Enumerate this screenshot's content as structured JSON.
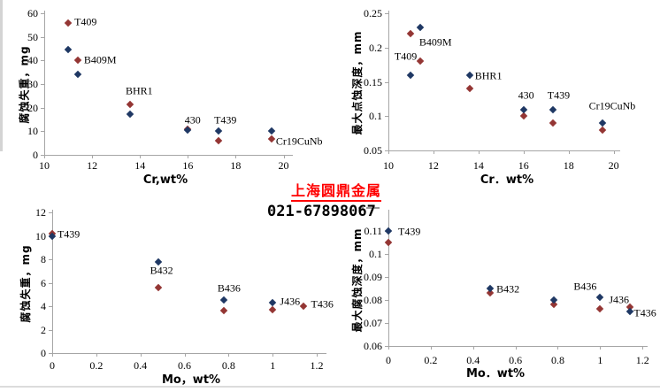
{
  "watermark": {
    "company": "上海圆鼎金属",
    "phone": "021-67898067",
    "company_color": "#ff0000",
    "phone_color": "#000000"
  },
  "series_colors": {
    "red": "#943634",
    "blue": "#1F3864"
  },
  "chart_data": [
    {
      "id": "cr-weight-loss",
      "type": "scatter",
      "xlabel": "Cr,wt%",
      "ylabel": "腐蚀失重，mg",
      "xlim": [
        10,
        20.35
      ],
      "ylim": [
        0,
        60
      ],
      "xtick_values": [
        10,
        12,
        14,
        16,
        18,
        20
      ],
      "xtick_labels": [
        "10",
        "12",
        "14",
        "16",
        "18",
        "20"
      ],
      "ytick_values": [
        0,
        10,
        20,
        30,
        40,
        50,
        60
      ],
      "ytick_labels": [
        "0",
        "10",
        "20",
        "30",
        "40",
        "50",
        "60"
      ],
      "series": [
        {
          "name": "red",
          "points": [
            [
              11,
              56
            ],
            [
              11.4,
              40.3
            ],
            [
              13.6,
              21.4
            ],
            [
              16,
              10.9
            ],
            [
              17.3,
              6
            ],
            [
              19.5,
              6.6
            ]
          ]
        },
        {
          "name": "blue",
          "points": [
            [
              11,
              44.8
            ],
            [
              11.4,
              34.2
            ],
            [
              13.6,
              17.2
            ],
            [
              16,
              10.5
            ],
            [
              17.3,
              10.2
            ],
            [
              19.5,
              10
            ]
          ]
        }
      ],
      "annotations": [
        {
          "text": "T409",
          "x": 11.26,
          "y": 56.4
        },
        {
          "text": "B409M",
          "x": 11.66,
          "y": 40.1
        },
        {
          "text": "BHR1",
          "x": 13.4,
          "y": 27.0
        },
        {
          "text": "430",
          "x": 15.87,
          "y": 14.6
        },
        {
          "text": "T439",
          "x": 17.1,
          "y": 14.8
        },
        {
          "text": "Cr19CuNb",
          "x": 19.68,
          "y": 5.8
        }
      ]
    },
    {
      "id": "cr-pit-depth",
      "type": "scatter",
      "xlabel": "Cr．wt%",
      "ylabel": "最大点蚀深度，mm",
      "xlim": [
        10,
        20.25
      ],
      "ylim": [
        0.05,
        0.25
      ],
      "xtick_values": [
        10,
        12,
        14,
        16,
        18,
        20
      ],
      "xtick_labels": [
        "10",
        "12",
        "14",
        "16",
        "18",
        "20"
      ],
      "ytick_values": [
        0.05,
        0.1,
        0.15,
        0.2,
        0.25
      ],
      "ytick_labels": [
        "0.05",
        "0.1",
        "0.15",
        "0.2",
        "0.25"
      ],
      "series": [
        {
          "name": "red",
          "points": [
            [
              11,
              0.22
            ],
            [
              11.4,
              0.18
            ],
            [
              13.6,
              0.14
            ],
            [
              16,
              0.1
            ],
            [
              17.3,
              0.09
            ],
            [
              19.5,
              0.08
            ]
          ]
        },
        {
          "name": "blue",
          "points": [
            [
              11,
              0.16
            ],
            [
              11.4,
              0.23
            ],
            [
              13.6,
              0.16
            ],
            [
              16,
              0.11
            ],
            [
              17.3,
              0.11
            ],
            [
              19.5,
              0.09
            ]
          ]
        }
      ],
      "annotations": [
        {
          "text": "T409",
          "x": 10.27,
          "y": 0.187
        },
        {
          "text": "B409M",
          "x": 11.37,
          "y": 0.207
        },
        {
          "text": "BHR1",
          "x": 13.84,
          "y": 0.159
        },
        {
          "text": "430",
          "x": 15.76,
          "y": 0.13
        },
        {
          "text": "T439",
          "x": 17.06,
          "y": 0.13
        },
        {
          "text": "Cr19CuNb",
          "x": 18.9,
          "y": 0.115
        }
      ]
    },
    {
      "id": "mo-weight-loss",
      "type": "scatter",
      "xlabel": "Mo，wt%",
      "ylabel": "腐蚀失重，mg",
      "xlim": [
        0,
        1.24
      ],
      "ylim": [
        0,
        12
      ],
      "xtick_values": [
        0,
        0.2,
        0.4,
        0.6,
        0.8,
        1,
        1.2
      ],
      "xtick_labels": [
        "0",
        "0.2",
        "0.4",
        "0.6",
        "0.8",
        "1",
        "1.2"
      ],
      "ytick_values": [
        0,
        2,
        4,
        6,
        8,
        10,
        12
      ],
      "ytick_labels": [
        "0",
        "2",
        "4",
        "6",
        "8",
        "10",
        "12"
      ],
      "series": [
        {
          "name": "red",
          "points": [
            [
              0,
              10.2
            ],
            [
              0.48,
              5.6
            ],
            [
              0.78,
              3.6
            ],
            [
              1.0,
              3.7
            ],
            [
              1.14,
              4.0
            ]
          ]
        },
        {
          "name": "blue",
          "points": [
            [
              0,
              10.0
            ],
            [
              0.48,
              7.8
            ],
            [
              0.78,
              4.5
            ],
            [
              1.0,
              4.3
            ]
          ]
        }
      ],
      "annotations": [
        {
          "text": "T439",
          "x": 0.024,
          "y": 10.13
        },
        {
          "text": "B432",
          "x": 0.444,
          "y": 7.03
        },
        {
          "text": "B436",
          "x": 0.75,
          "y": 5.52
        },
        {
          "text": "J436",
          "x": 1.033,
          "y": 4.4
        },
        {
          "text": "T436",
          "x": 1.174,
          "y": 4.12
        }
      ]
    },
    {
      "id": "mo-corrosion-depth",
      "type": "scatter",
      "xlabel": "Mo．wt%",
      "ylabel": "最大腐蚀深度，mm",
      "xlim": [
        0,
        1.22
      ],
      "ylim": [
        0.06,
        0.118
      ],
      "xtick_values": [
        0,
        0.2,
        0.4,
        0.6,
        0.8,
        1,
        1.2
      ],
      "xtick_labels": [
        "0",
        "0.2",
        "0.4",
        "0.6",
        "0.8",
        "1",
        "1.2"
      ],
      "ytick_values": [
        0.06,
        0.07,
        0.08,
        0.09,
        0.1,
        0.11
      ],
      "ytick_labels": [
        "0.06",
        "0.07",
        "0.08",
        "0.09",
        "0.1",
        "0.11"
      ],
      "series": [
        {
          "name": "red",
          "points": [
            [
              0,
              0.105
            ],
            [
              0.48,
              0.083
            ],
            [
              0.78,
              0.078
            ],
            [
              1.0,
              0.076
            ],
            [
              1.14,
              0.077
            ]
          ]
        },
        {
          "name": "blue",
          "points": [
            [
              0,
              0.11
            ],
            [
              0.48,
              0.085
            ],
            [
              0.78,
              0.08
            ],
            [
              1.0,
              0.081
            ],
            [
              1.14,
              0.075
            ]
          ]
        }
      ],
      "annotations": [
        {
          "text": "T439",
          "x": 0.046,
          "y": 0.1097
        },
        {
          "text": "B432",
          "x": 0.51,
          "y": 0.0845
        },
        {
          "text": "B436",
          "x": 0.875,
          "y": 0.0857
        },
        {
          "text": "J436",
          "x": 1.042,
          "y": 0.08
        },
        {
          "text": "T436",
          "x": 1.159,
          "y": 0.0742
        }
      ]
    }
  ]
}
